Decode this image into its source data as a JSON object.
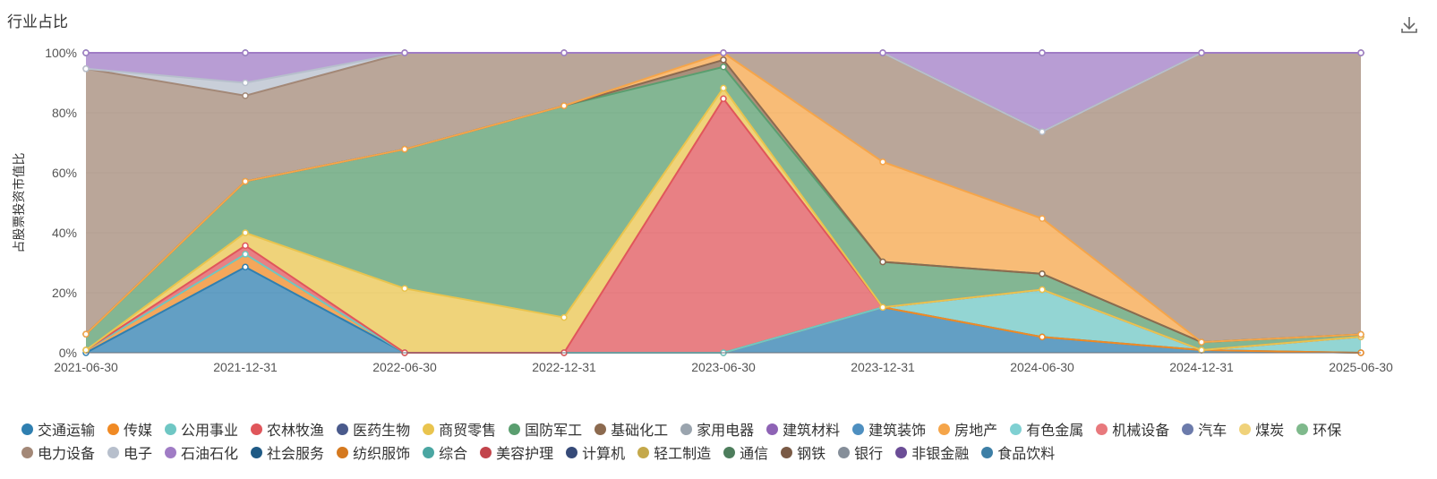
{
  "title": "行业占比",
  "toolbar": {
    "download_icon": "download-icon"
  },
  "chart_data": {
    "type": "area",
    "stacked": true,
    "normalized_percent": true,
    "title": "行业占比",
    "xlabel": "",
    "ylabel": "占股票投资市值比",
    "ylim": [
      0,
      100
    ],
    "y_ticks": [
      "0%",
      "20%",
      "40%",
      "60%",
      "80%",
      "100%"
    ],
    "grid": true,
    "legend_position": "bottom",
    "x": [
      "2021-06-30",
      "2021-12-31",
      "2022-06-30",
      "2022-12-31",
      "2023-06-30",
      "2023-12-31",
      "2024-06-30",
      "2024-12-31",
      "2025-06-30"
    ],
    "series": [
      {
        "name": "交通运输",
        "color": "#2f7fb0",
        "values": [
          0,
          10,
          0,
          0,
          0,
          2.5,
          1,
          0.5,
          0
        ]
      },
      {
        "name": "传媒",
        "color": "#f08a24",
        "values": [
          0.5,
          1.5,
          0,
          0,
          0,
          0,
          0,
          0,
          0
        ]
      },
      {
        "name": "公用事业",
        "color": "#6fc7c4",
        "values": [
          0,
          0,
          0,
          0,
          0,
          0,
          3,
          0,
          3.5
        ]
      },
      {
        "name": "农林牧渔",
        "color": "#e0565b",
        "values": [
          0,
          1,
          0,
          0,
          36,
          0,
          0,
          0,
          0
        ]
      },
      {
        "name": "医药生物",
        "color": "#4a5a8c",
        "values": [
          0,
          0,
          0,
          0,
          0,
          0,
          0,
          0,
          0
        ]
      },
      {
        "name": "商贸零售",
        "color": "#e9c44e",
        "values": [
          0,
          1.5,
          3,
          1,
          1.5,
          0,
          0,
          0,
          0
        ]
      },
      {
        "name": "国防军工",
        "color": "#5a9e6f",
        "values": [
          3,
          6,
          6.5,
          6,
          3,
          2.5,
          1,
          1.5,
          0.5
        ]
      },
      {
        "name": "基础化工",
        "color": "#8c6a4f",
        "values": [
          0,
          0,
          0,
          0,
          1,
          0,
          0,
          0,
          0
        ]
      },
      {
        "name": "家用电器",
        "color": "#9aa4ae",
        "values": [
          0,
          0,
          0,
          0,
          0,
          0,
          0,
          0,
          0
        ]
      },
      {
        "name": "建筑材料",
        "color": "#8e63b5",
        "values": [
          0,
          0,
          0,
          0,
          0,
          0,
          0,
          0,
          0
        ]
      },
      {
        "name": "建筑装饰",
        "color": "#4e8fc0",
        "values": [
          0,
          0,
          0,
          0,
          0,
          0,
          0,
          0,
          0
        ]
      },
      {
        "name": "房地产",
        "color": "#f5a54a",
        "values": [
          0,
          0,
          0,
          0,
          1,
          5.5,
          3.5,
          0,
          0
        ]
      },
      {
        "name": "有色金属",
        "color": "#7fd0d2",
        "values": [
          0,
          0,
          0,
          0,
          0,
          0,
          0,
          0,
          0
        ]
      },
      {
        "name": "机械设备",
        "color": "#e8797d",
        "values": [
          0,
          0,
          0,
          0,
          0,
          0,
          0,
          0,
          0
        ]
      },
      {
        "name": "汽车",
        "color": "#6c7bab",
        "values": [
          0,
          0,
          0,
          0,
          0,
          0,
          0,
          0,
          0
        ]
      },
      {
        "name": "煤炭",
        "color": "#f0d27a",
        "values": [
          0,
          0,
          0,
          0,
          0,
          0,
          0,
          0,
          0
        ]
      },
      {
        "name": "环保",
        "color": "#7fb98c",
        "values": [
          0,
          0,
          0,
          0,
          0,
          0,
          0,
          0,
          0
        ]
      },
      {
        "name": "电力设备",
        "color": "#a38877",
        "values": [
          50,
          10,
          4.5,
          1.5,
          0,
          6,
          5.5,
          54.5,
          61.5
        ]
      },
      {
        "name": "电子",
        "color": "#b7bfcc",
        "values": [
          0,
          1.5,
          0,
          0,
          0,
          0,
          0,
          0,
          0
        ]
      },
      {
        "name": "石油石化",
        "color": "#a07cc5",
        "values": [
          3,
          3.5,
          0,
          0,
          0,
          0,
          5,
          0,
          0
        ]
      },
      {
        "name": "社会服务",
        "color": "#1f5a85",
        "values": [
          0,
          0,
          0,
          0,
          0,
          0,
          0,
          0,
          0
        ]
      },
      {
        "name": "纺织服饰",
        "color": "#d5791f",
        "values": [
          0,
          0,
          0,
          0,
          0,
          0,
          0,
          0,
          0
        ]
      },
      {
        "name": "综合",
        "color": "#4aa6a2",
        "values": [
          0,
          0,
          0,
          0,
          0,
          0,
          0,
          0,
          0
        ]
      },
      {
        "name": "美容护理",
        "color": "#c2444b",
        "values": [
          0,
          0,
          0,
          0,
          0,
          0,
          0,
          0,
          0
        ]
      },
      {
        "name": "计算机",
        "color": "#364a78",
        "values": [
          0,
          0,
          0,
          0,
          0,
          0,
          0,
          0,
          0
        ]
      },
      {
        "name": "轻工制造",
        "color": "#c4a84a",
        "values": [
          0,
          0,
          0,
          0,
          0,
          0,
          0,
          0,
          0
        ]
      },
      {
        "name": "通信",
        "color": "#4d7d5c",
        "values": [
          0,
          0,
          0,
          0,
          0,
          0,
          0,
          0,
          0
        ]
      },
      {
        "name": "钢铁",
        "color": "#7a5a45",
        "values": [
          0,
          0,
          0,
          0,
          0,
          0,
          0,
          0,
          0
        ]
      },
      {
        "name": "银行",
        "color": "#858e99",
        "values": [
          0,
          0,
          0,
          0,
          0,
          0,
          0,
          0,
          0
        ]
      },
      {
        "name": "非银金融",
        "color": "#6b4d96",
        "values": [
          0,
          0,
          0,
          0,
          0,
          0,
          0,
          0,
          0
        ]
      },
      {
        "name": "食品饮料",
        "color": "#3d7fa6",
        "values": [
          0,
          0,
          0,
          0,
          0,
          0,
          0,
          0,
          0
        ]
      },
      {
        "name": "建筑装饰",
        "color": "#6a9cc7",
        "values": [
          0,
          0,
          0,
          0,
          0,
          0,
          0,
          0,
          0
        ]
      },
      {
        "name": "建筑材料",
        "color": "#8e63b5",
        "values": [
          0,
          0,
          0,
          0,
          0,
          0,
          0,
          0,
          0
        ]
      },
      {
        "name": "房地产",
        "color": "#f5a54a",
        "values": [
          0,
          0,
          0,
          0,
          0,
          0,
          0,
          0,
          0
        ]
      },
      {
        "name": "有色金属",
        "color": "#9cd7d8",
        "values": [
          0,
          0,
          0,
          0,
          0,
          0,
          0,
          0,
          0
        ]
      },
      {
        "name": "机械设备",
        "color": "#ec8c8f",
        "values": [
          0,
          0,
          0,
          0,
          0,
          0,
          0,
          0,
          0
        ]
      }
    ]
  }
}
